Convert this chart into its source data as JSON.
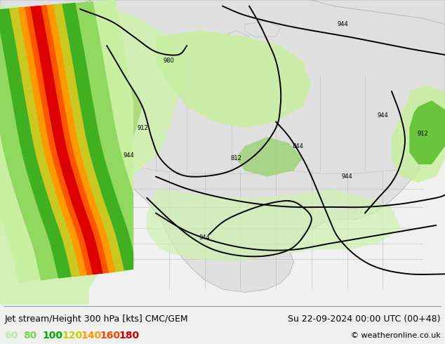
{
  "title_left": "Jet stream/Height 300 hPa [kts] CMC/GEM",
  "title_right": "Su 22-09-2024 00:00 UTC (00+48)",
  "copyright": "© weatheronline.co.uk",
  "legend_values": [
    "60",
    "80",
    "100",
    "120",
    "140",
    "160",
    "180"
  ],
  "legend_colors": [
    "#b4f0a0",
    "#78d850",
    "#00aa00",
    "#cccc00",
    "#ff9900",
    "#ff4400",
    "#cc0000"
  ],
  "bg_color": "#e8e8e8",
  "land_color": "#d8d8d8",
  "ocean_color": "#e0e8f0",
  "border_color": "#aaaaaa",
  "title_fontsize": 9,
  "legend_fontsize": 9,
  "fig_width": 6.34,
  "fig_height": 4.9,
  "dpi": 100
}
